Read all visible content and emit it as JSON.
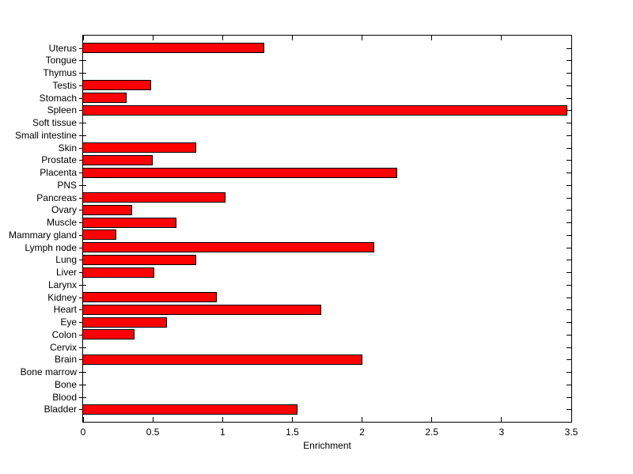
{
  "figure": {
    "background_color": "#FFFFFF",
    "axis_color": "#000000",
    "text_color": "#000000"
  },
  "chart_data": {
    "type": "bar",
    "orientation": "horizontal",
    "title": "",
    "xlabel": "Enrichment",
    "ylabel": "",
    "xlim": [
      0,
      3.5
    ],
    "xticks": [
      0,
      0.5,
      1,
      1.5,
      2,
      2.5,
      3,
      3.5
    ],
    "xtick_labels": [
      "0",
      "0.5",
      "1",
      "1.5",
      "2",
      "2.5",
      "3",
      "3.5"
    ],
    "grid": false,
    "legend_position": "none",
    "bar_color": "#FF0000",
    "bar_edge_color": "#000000",
    "categories": [
      "Uterus",
      "Tongue",
      "Thymus",
      "Testis",
      "Stomach",
      "Spleen",
      "Soft tissue",
      "Small intestine",
      "Skin",
      "Prostate",
      "Placenta",
      "PNS",
      "Pancreas",
      "Ovary",
      "Muscle",
      "Mammary gland",
      "Lymph node",
      "Lung",
      "Liver",
      "Larynx",
      "Kidney",
      "Heart",
      "Eye",
      "Colon",
      "Cervix",
      "Brain",
      "Bone marrow",
      "Bone",
      "Blood",
      "Bladder"
    ],
    "values": [
      1.3,
      0,
      0,
      0.49,
      0.31,
      3.47,
      0,
      0,
      0.81,
      0.5,
      2.25,
      0,
      1.02,
      0.35,
      0.67,
      0.24,
      2.09,
      0.81,
      0.51,
      0,
      0.96,
      1.71,
      0.6,
      0.37,
      0,
      2.0,
      0,
      0,
      0,
      1.54
    ]
  }
}
